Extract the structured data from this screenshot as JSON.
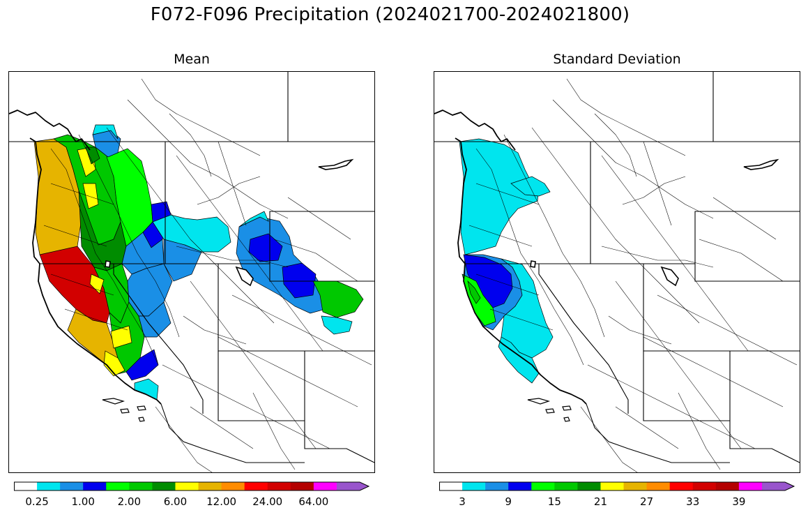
{
  "title": "F072-F096 Precipitation (2024021700-2024021800)",
  "panels": [
    {
      "id": "mean",
      "title": "Mean",
      "colorbar": {
        "colors": [
          "#ffffff",
          "#00e5ee",
          "#1a8fe6",
          "#0000ee",
          "#00ff00",
          "#00c800",
          "#008c00",
          "#ffff00",
          "#e6b400",
          "#ff8c00",
          "#ff0000",
          "#d20000",
          "#b40000",
          "#ff00ff",
          "#9955cc"
        ],
        "tick_labels": [
          "0.25",
          "1.00",
          "2.00",
          "6.00",
          "12.00",
          "24.00",
          "64.00"
        ],
        "extend": "max"
      }
    },
    {
      "id": "std",
      "title": "Standard Deviation",
      "colorbar": {
        "colors": [
          "#ffffff",
          "#00e5ee",
          "#1a8fe6",
          "#0000ee",
          "#00ff00",
          "#00c800",
          "#008c00",
          "#ffff00",
          "#e6b400",
          "#ff8c00",
          "#ff0000",
          "#d20000",
          "#b40000",
          "#ff00ff",
          "#9955cc"
        ],
        "tick_labels": [
          "3",
          "9",
          "15",
          "21",
          "27",
          "33",
          "39"
        ],
        "extend": "max"
      }
    }
  ]
}
